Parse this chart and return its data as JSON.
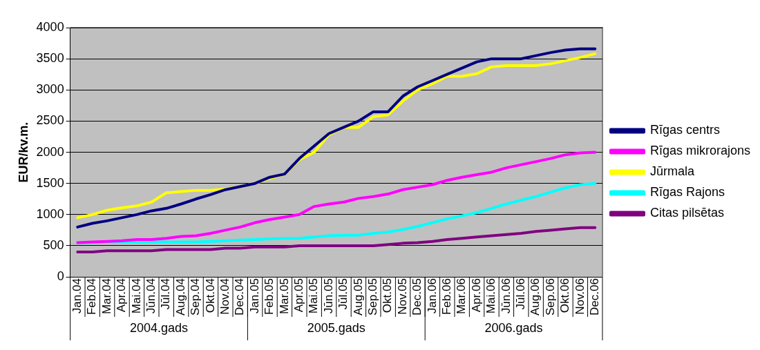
{
  "chart_data": {
    "type": "line",
    "ylabel": "EUR/kv.m.",
    "legend": "right",
    "grid": "y",
    "marker": "none",
    "line_style": "solid",
    "categories": [
      "Jan.04",
      "Feb.04",
      "Mar.04",
      "Apr.04",
      "Mai.04",
      "Jūn.04",
      "Jūl.04",
      "Aug.04",
      "Sep.04",
      "Okt.04",
      "Nov.04",
      "Dec.04",
      "Jan.05",
      "Feb.05",
      "Mar.05",
      "Apr.05",
      "Mai.05",
      "Jūn.05",
      "Jūl.05",
      "Aug.05",
      "Sep.05",
      "Okt.05",
      "Nov.05",
      "Dec.05",
      "Jan.06",
      "Feb.06",
      "Mar.06",
      "Apr.06",
      "Mai.06",
      "Jūn.06",
      "Jūl.06",
      "Aug.06",
      "Sep.06",
      "Okt.06",
      "Nov.06",
      "Dec.06"
    ],
    "ylim": [
      0,
      4000
    ],
    "yticks": [
      0,
      500,
      1000,
      1500,
      2000,
      2500,
      3000,
      3500,
      4000
    ],
    "annotations": [
      "2004.gads",
      "2005.gads",
      "2006.gads"
    ],
    "series": [
      {
        "name": "Rīgas centrs",
        "color": "#000080",
        "values": [
          800,
          860,
          900,
          950,
          1000,
          1060,
          1100,
          1170,
          1250,
          1320,
          1400,
          1450,
          1500,
          1600,
          1650,
          1900,
          2100,
          2300,
          2400,
          2500,
          2650,
          2650,
          2900,
          3050,
          3150,
          3250,
          3350,
          3450,
          3500,
          3500,
          3500,
          3550,
          3600,
          3640,
          3660,
          3660
        ]
      },
      {
        "name": "Rīgas mikrorajons",
        "color": "#ff00ff",
        "values": [
          550,
          560,
          570,
          580,
          600,
          600,
          620,
          650,
          660,
          700,
          750,
          800,
          870,
          920,
          960,
          1000,
          1130,
          1170,
          1200,
          1260,
          1290,
          1330,
          1400,
          1440,
          1480,
          1550,
          1600,
          1640,
          1680,
          1750,
          1800,
          1850,
          1900,
          1960,
          1990,
          2000
        ]
      },
      {
        "name": "Jūrmala",
        "color": "#ffff00",
        "values": [
          950,
          1000,
          1070,
          1110,
          1140,
          1200,
          1350,
          1370,
          1390,
          1390,
          1410,
          1450,
          1500,
          1580,
          1650,
          1880,
          2000,
          2280,
          2400,
          2400,
          2570,
          2600,
          2820,
          3000,
          3100,
          3220,
          3220,
          3260,
          3370,
          3390,
          3390,
          3390,
          3420,
          3470,
          3520,
          3580
        ]
      },
      {
        "name": "Rīgas Rajons",
        "color": "#00ffff",
        "values": [
          550,
          550,
          560,
          560,
          560,
          560,
          560,
          560,
          560,
          570,
          580,
          590,
          600,
          610,
          620,
          620,
          640,
          660,
          670,
          670,
          700,
          720,
          760,
          810,
          870,
          930,
          980,
          1030,
          1100,
          1170,
          1230,
          1290,
          1360,
          1430,
          1480,
          1500
        ]
      },
      {
        "name": "Citas pilsētas",
        "color": "#800080",
        "values": [
          400,
          400,
          420,
          420,
          420,
          420,
          440,
          440,
          440,
          440,
          460,
          460,
          480,
          480,
          480,
          500,
          500,
          500,
          500,
          500,
          500,
          520,
          540,
          550,
          570,
          600,
          620,
          640,
          660,
          680,
          700,
          730,
          750,
          770,
          790,
          790
        ]
      }
    ]
  }
}
